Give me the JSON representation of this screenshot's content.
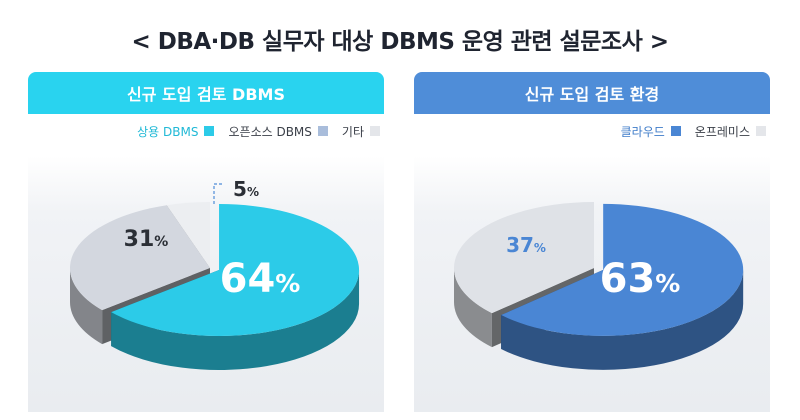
{
  "title": "< DBA·DB 실무자 대상 DBMS 운영 관련 설문조사 >",
  "chart_data": [
    {
      "type": "pie",
      "title": "신규 도입 검토 DBMS",
      "slices": [
        {
          "label": "상용 DBMS",
          "value": 64,
          "display": "64%",
          "color": "#2ccbe8"
        },
        {
          "label": "오픈소스 DBMS",
          "value": 31,
          "display": "31%",
          "color": "#d3d7df"
        },
        {
          "label": "기타",
          "value": 5,
          "display": "5%",
          "color": "#eceef1"
        }
      ],
      "legend_position": "top-right"
    },
    {
      "type": "pie",
      "title": "신규 도입 검토 환경",
      "slices": [
        {
          "label": "클라우드",
          "value": 63,
          "display": "63%",
          "color": "#4a86d4"
        },
        {
          "label": "온프레미스",
          "value": 37,
          "display": "37%",
          "color": "#dfe2e7"
        }
      ],
      "legend_position": "top-right"
    }
  ],
  "colors": {
    "header_left": "#29d3ef",
    "header_right": "#4f8dd8",
    "legend_commercial": "#2ccbe8",
    "legend_opensource": "#a9bddb",
    "legend_other": "#e4e6ea",
    "legend_cloud": "#4a86d4",
    "legend_onprem": "#e4e6ea",
    "legend_text_accent_left": "#20b9d6",
    "legend_text_accent_right": "#3f7cc9"
  },
  "legend_left": [
    {
      "label": "상용 DBMS",
      "color": "#2ccbe8",
      "text_color": "#20b9d6"
    },
    {
      "label": "오픈소스 DBMS",
      "color": "#a9bddb",
      "text_color": "#3a3f48"
    },
    {
      "label": "기타",
      "color": "#e4e6ea",
      "text_color": "#3a3f48"
    }
  ],
  "legend_right": [
    {
      "label": "클라우드",
      "color": "#4a86d4",
      "text_color": "#3f7cc9"
    },
    {
      "label": "온프레미스",
      "color": "#e4e6ea",
      "text_color": "#3a3f48"
    }
  ]
}
